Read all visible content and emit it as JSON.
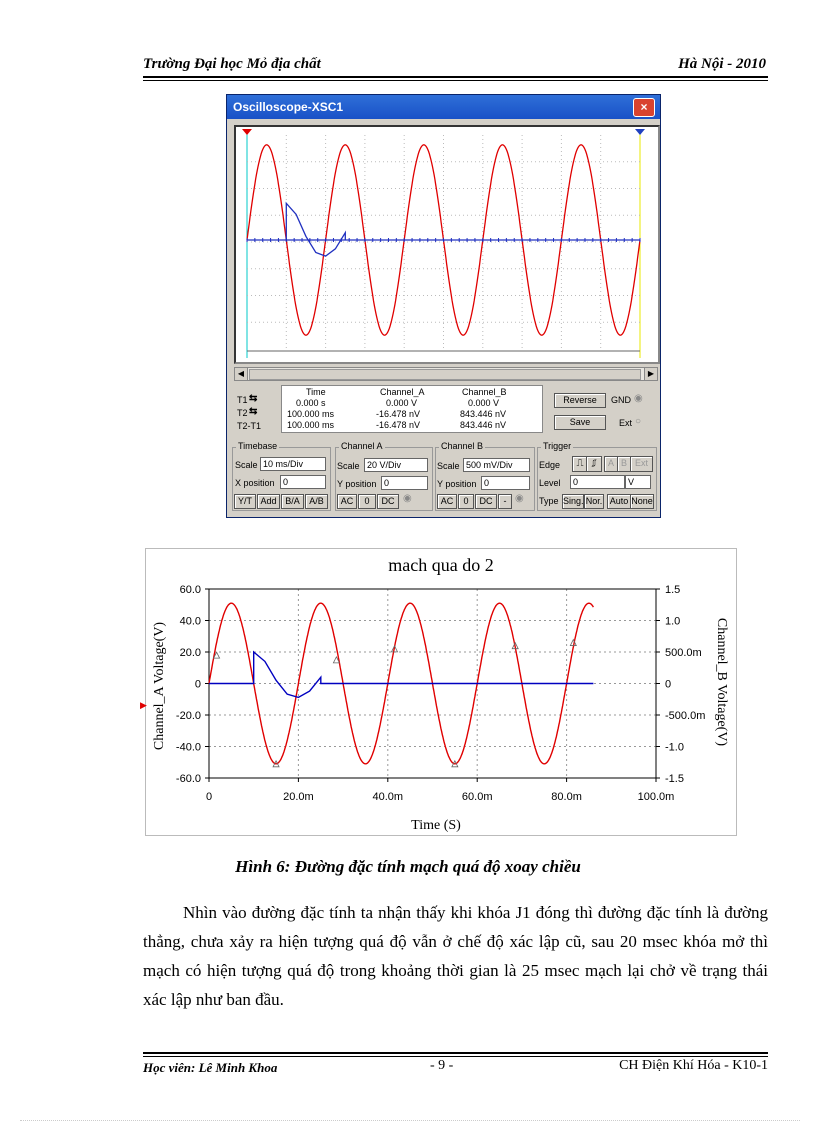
{
  "header": {
    "left": "Trường Đại học Mỏ địa chất",
    "right": "Hà Nội - 2010"
  },
  "oscilloscope": {
    "title": "Oscilloscope-XSC1",
    "close_label": "×",
    "readout": {
      "headers": [
        "Time",
        "Channel_A",
        "Channel_B"
      ],
      "rows": [
        {
          "label": "T1",
          "time": "0.000 s",
          "a": "0.000 V",
          "b": "0.000 V"
        },
        {
          "label": "T2",
          "time": "100.000 ms",
          "a": "-16.478 nV",
          "b": "843.446 nV"
        },
        {
          "label": "T2-T1",
          "time": "100.000 ms",
          "a": "-16.478 nV",
          "b": "843.446 nV"
        }
      ]
    },
    "buttons": {
      "reverse": "Reverse",
      "save": "Save",
      "gnd": "GND",
      "ext": "Ext"
    },
    "timebase": {
      "title": "Timebase",
      "scale_label": "Scale",
      "scale": "10 ms/Div",
      "xpos_label": "X position",
      "xpos": "0",
      "modes": [
        "Y/T",
        "Add",
        "B/A",
        "A/B"
      ]
    },
    "channel_a": {
      "title": "Channel A",
      "scale_label": "Scale",
      "scale": "20  V/Div",
      "ypos_label": "Y position",
      "ypos": "0",
      "coupling": [
        "AC",
        "0",
        "DC"
      ]
    },
    "channel_b": {
      "title": "Channel B",
      "scale_label": "Scale",
      "scale": "500 mV/Div",
      "ypos_label": "Y position",
      "ypos": "0",
      "coupling": [
        "AC",
        "0",
        "DC",
        "-"
      ]
    },
    "trigger": {
      "title": "Trigger",
      "edge_label": "Edge",
      "level_label": "Level",
      "level": "0",
      "level_unit": "V",
      "type_label": "Type",
      "types": [
        "Sing.",
        "Nor.",
        "Auto",
        "None"
      ],
      "sources": [
        "A",
        "B",
        "Ext"
      ]
    }
  },
  "chart_data": {
    "type": "line",
    "title": "mach qua do 2",
    "xlabel": "Time (S)",
    "ylabel_left": "Channel_A Voltage(V)",
    "ylabel_right": "Channel_B Voltage(V)",
    "xlim": [
      0,
      0.1
    ],
    "ylim_left": [
      -60,
      60
    ],
    "ylim_right": [
      -1.5,
      1.5
    ],
    "x_ticks": [
      "0",
      "20.0m",
      "40.0m",
      "60.0m",
      "80.0m",
      "100.0m"
    ],
    "y_ticks_left": [
      "60.0",
      "40.0",
      "20.0",
      "0",
      "-20.0",
      "-40.0",
      "-60.0"
    ],
    "y_ticks_right": [
      "1.5",
      "1.0",
      "500.0m",
      "0",
      "-500.0m",
      "-1.0",
      "-1.5"
    ],
    "grid": true,
    "series": [
      {
        "axis": "left",
        "color": "#e00000",
        "x": [
          0,
          0.0025,
          0.005,
          0.0075,
          0.01,
          0.0125,
          0.015,
          0.0175,
          0.02,
          0.0225,
          0.025,
          0.0275,
          0.03,
          0.0325,
          0.035,
          0.0375,
          0.04,
          0.0425,
          0.045,
          0.0475,
          0.05,
          0.0525,
          0.055,
          0.0575,
          0.06,
          0.0625,
          0.065,
          0.0675,
          0.07,
          0.0725,
          0.075,
          0.0775,
          0.08,
          0.0825,
          0.085,
          0.086
        ],
        "y": [
          0,
          36,
          51,
          36,
          0,
          -36,
          -51,
          -36,
          0,
          36,
          51,
          36,
          0,
          -36,
          -51,
          -36,
          0,
          36,
          51,
          36,
          0,
          -36,
          -51,
          -36,
          0,
          36,
          51,
          36,
          0,
          -36,
          -51,
          -36,
          0,
          36,
          51,
          50
        ]
      },
      {
        "axis": "right",
        "color": "#0000c0",
        "x": [
          0,
          0.01,
          0.01,
          0.0125,
          0.015,
          0.0175,
          0.02,
          0.0225,
          0.025,
          0.025,
          0.086
        ],
        "y": [
          0,
          0,
          0.5,
          0.35,
          0.05,
          -0.17,
          -0.22,
          -0.12,
          0.1,
          0,
          0
        ]
      }
    ],
    "markers": [
      {
        "x": 0.0017,
        "y": 18
      },
      {
        "x": 0.015,
        "y": -51
      },
      {
        "x": 0.0285,
        "y": 15
      },
      {
        "x": 0.0415,
        "y": 22
      },
      {
        "x": 0.055,
        "y": -51
      },
      {
        "x": 0.0685,
        "y": 24
      },
      {
        "x": 0.0815,
        "y": 26
      }
    ]
  },
  "caption": "Hình 6: Đường đặc tính mạch quá độ xoay chiều",
  "paragraph": "Nhìn vào đường đặc tính ta nhận thấy khi khóa J1 đóng thì đường đặc tính là đường thẳng, chưa xảy ra hiện tượng quá độ vẫn ở chế độ xác lập cũ, sau 20 msec khóa mở thì mạch có hiện tượng quá độ trong khoảng thời gian là 25 msec mạch lại chở về trạng thái xác lập như ban đầu.",
  "footer": {
    "left": "Học viên: Lê Minh Khoa",
    "page": "- 9 -",
    "right": "CH Điện Khí Hóa - K10-1"
  }
}
